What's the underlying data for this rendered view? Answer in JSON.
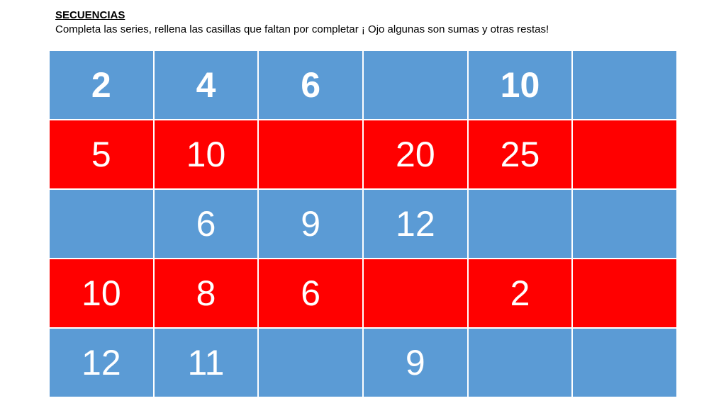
{
  "heading": "SECUENCIAS",
  "instructions": "Completa las series, rellena las casillas que faltan por completar ¡ Ojo algunas son sumas y otras restas!",
  "colors": {
    "blue_row": "#5b9bd5",
    "red_row": "#ff0000",
    "text": "#ffffff"
  },
  "rows": [
    {
      "color": "blue",
      "bold": true,
      "cells": [
        "2",
        "4",
        "6",
        "",
        "10",
        ""
      ]
    },
    {
      "color": "red",
      "bold": false,
      "cells": [
        "5",
        "10",
        "",
        "20",
        "25",
        ""
      ]
    },
    {
      "color": "blue",
      "bold": false,
      "cells": [
        "",
        "6",
        "9",
        "12",
        "",
        ""
      ]
    },
    {
      "color": "red",
      "bold": false,
      "cells": [
        "10",
        "8",
        "6",
        "",
        "2",
        ""
      ]
    },
    {
      "color": "blue",
      "bold": false,
      "cells": [
        "12",
        "11",
        "",
        "9",
        "",
        ""
      ]
    }
  ]
}
